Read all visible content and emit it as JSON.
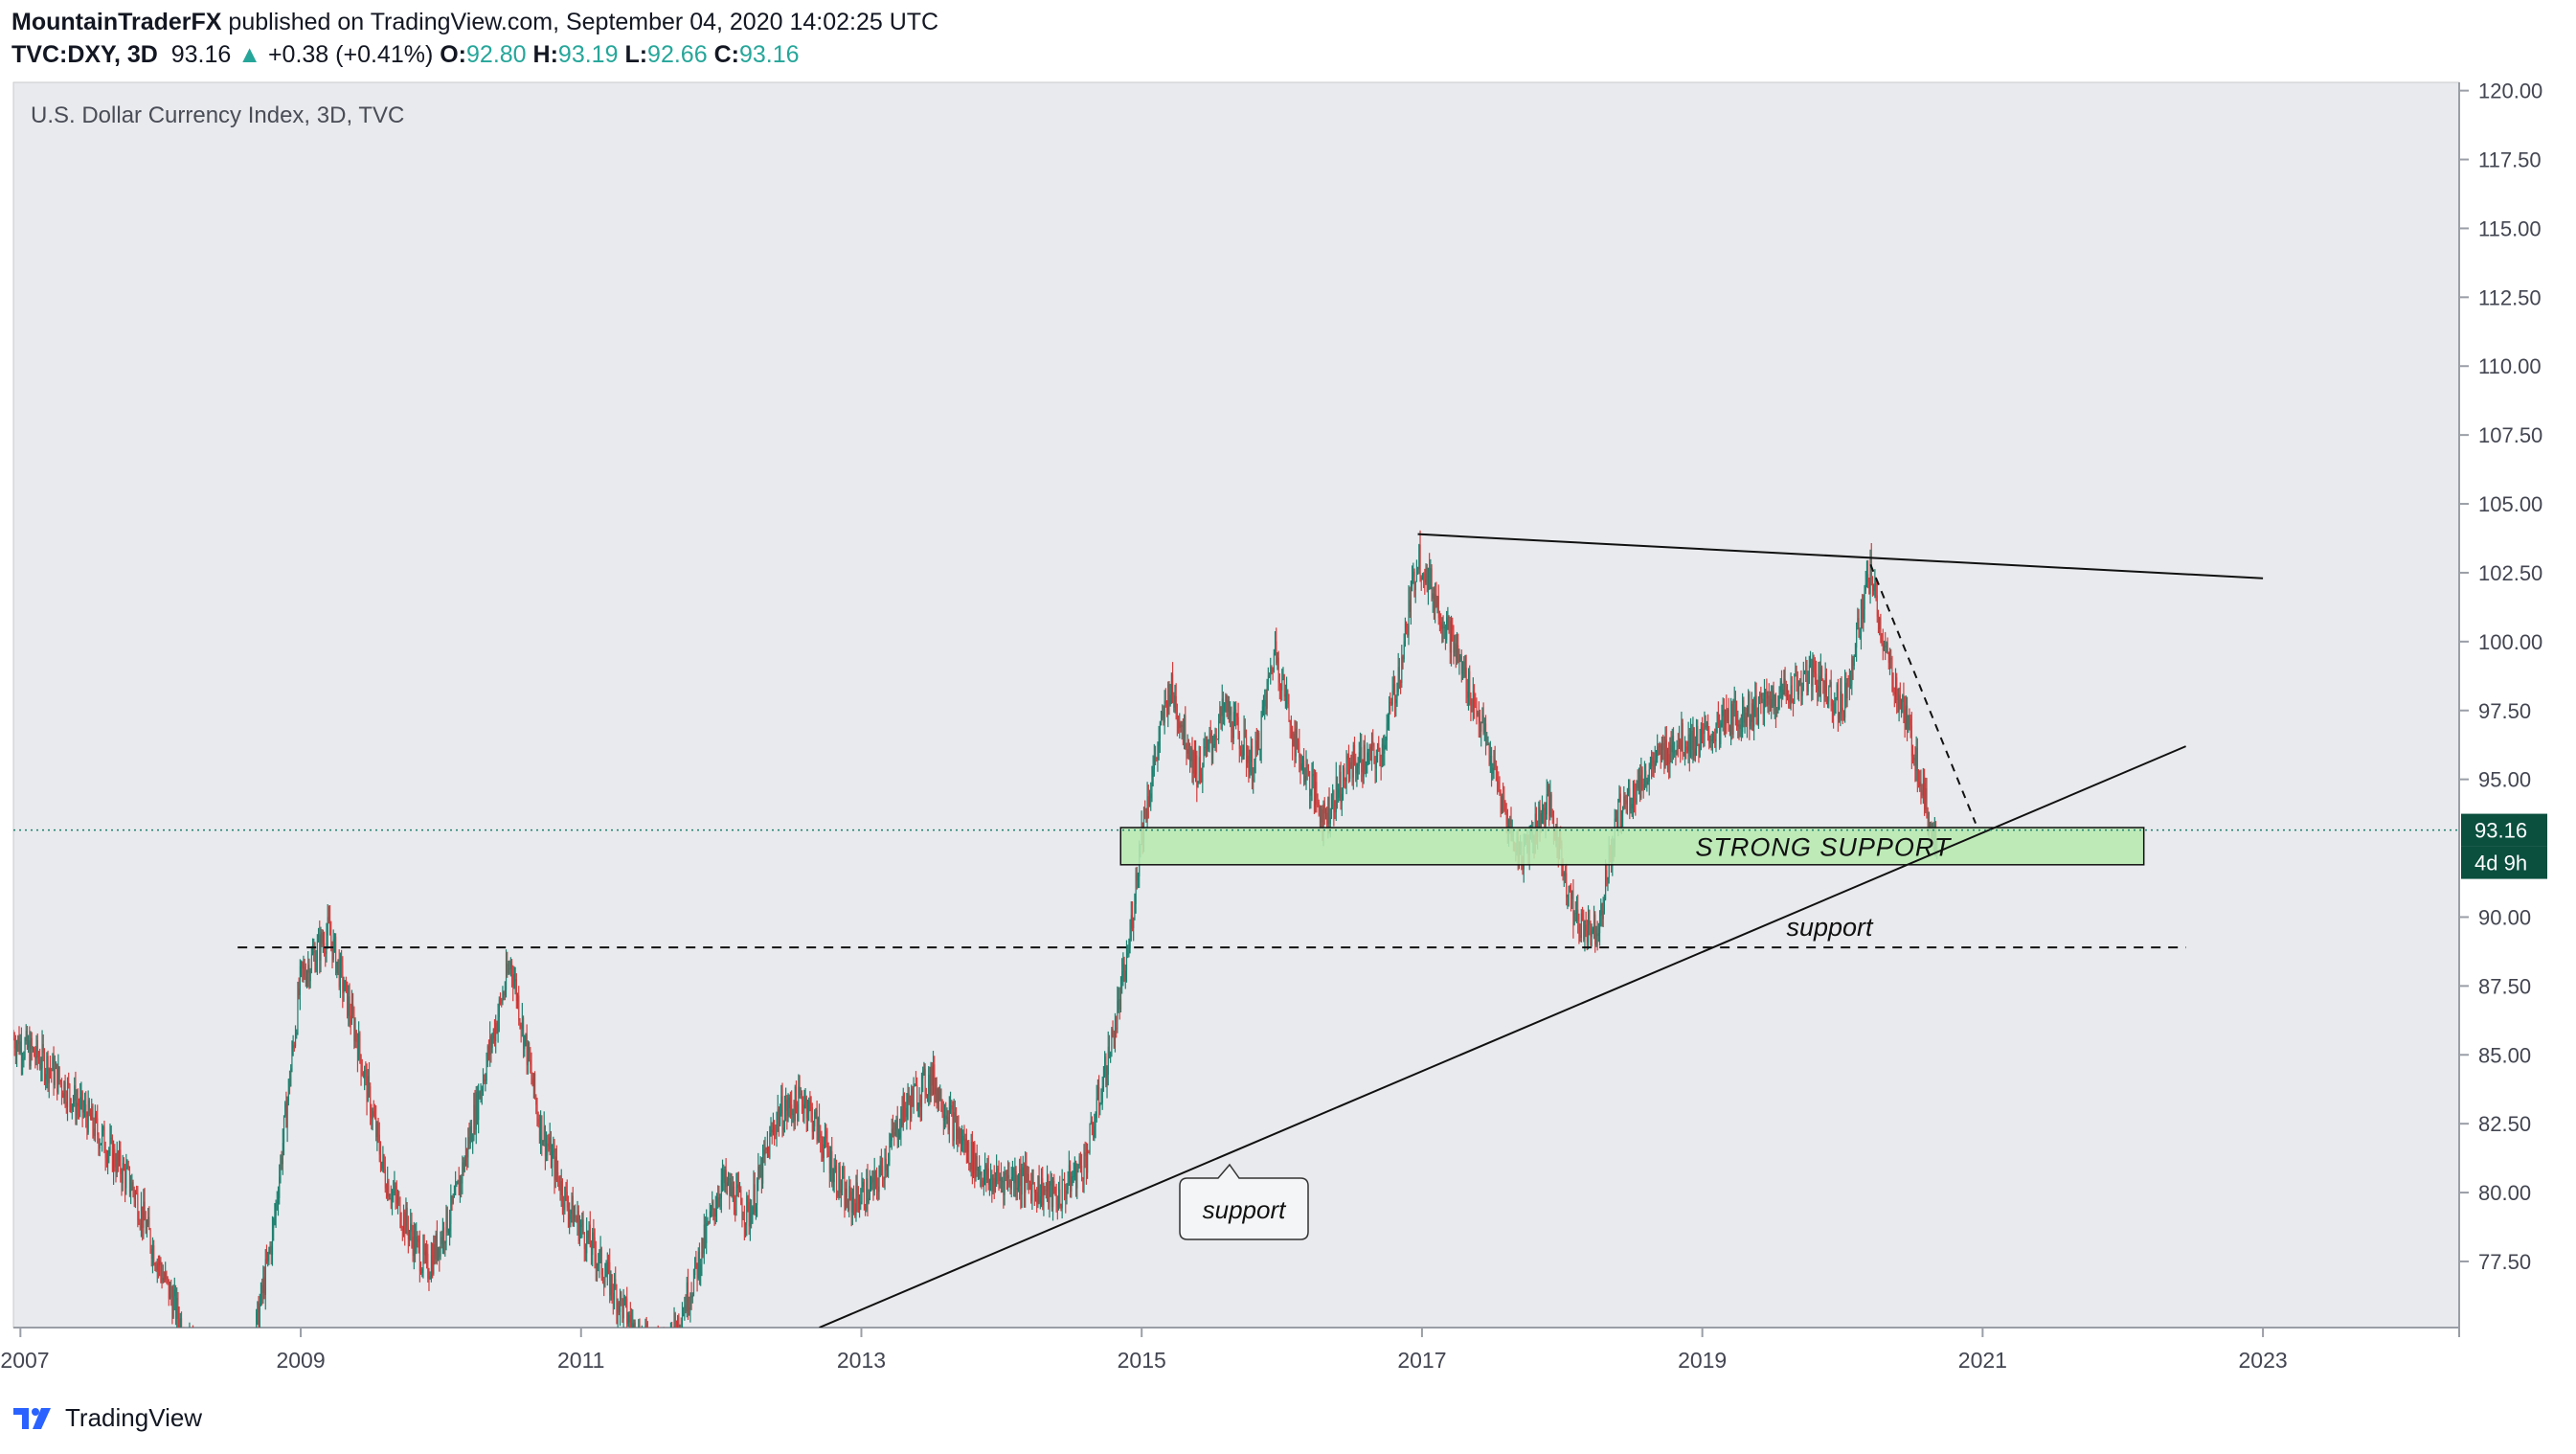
{
  "header": {
    "author": "MountainTraderFX",
    "published_text": "published on TradingView.com, September 04, 2020 14:02:25 UTC",
    "symbol": "TVC:DXY, 3D",
    "last": "93.16",
    "change_arrow": "▲",
    "change": "+0.38 (+0.41%)",
    "o_label": "O:",
    "o_value": "92.80",
    "h_label": "H:",
    "h_value": "93.19",
    "l_label": "L:",
    "l_value": "92.66",
    "c_label": "C:",
    "c_value": "93.16"
  },
  "footer": {
    "brand": "TradingView"
  },
  "chart_data": {
    "type": "candlestick",
    "title": "U.S. Dollar Currency Index, 3D, TVC",
    "x_ticks": [
      "2007",
      "2009",
      "2011",
      "2013",
      "2015",
      "2017",
      "2019",
      "2021",
      "2023"
    ],
    "x_tick_years": [
      2007,
      2009,
      2011,
      2013,
      2015,
      2017,
      2019,
      2021,
      2023
    ],
    "y_ticks": [
      "120.00",
      "117.50",
      "115.00",
      "112.50",
      "110.00",
      "107.50",
      "105.00",
      "102.50",
      "100.00",
      "97.50",
      "95.00",
      "90.00",
      "87.50",
      "85.00",
      "82.50",
      "80.00",
      "77.50"
    ],
    "y_tick_values": [
      120,
      117.5,
      115,
      112.5,
      110,
      107.5,
      105,
      102.5,
      100,
      97.5,
      95,
      90,
      87.5,
      85,
      82.5,
      80,
      77.5
    ],
    "xlim": [
      2006.95,
      2024.4
    ],
    "ylim": [
      75.1,
      120.3
    ],
    "price_path": [
      [
        2006.95,
        85.6
      ],
      [
        2007.2,
        84.6
      ],
      [
        2007.5,
        82.6
      ],
      [
        2007.8,
        80.2
      ],
      [
        2008.0,
        77.2
      ],
      [
        2008.3,
        73.2
      ],
      [
        2008.6,
        72.8
      ],
      [
        2008.8,
        78.5
      ],
      [
        2009.0,
        87.8
      ],
      [
        2009.2,
        89.5
      ],
      [
        2009.4,
        85.6
      ],
      [
        2009.6,
        80.6
      ],
      [
        2009.9,
        77.2
      ],
      [
        2010.1,
        79.6
      ],
      [
        2010.3,
        84.2
      ],
      [
        2010.5,
        88.4
      ],
      [
        2010.7,
        82.6
      ],
      [
        2010.9,
        79.6
      ],
      [
        2011.1,
        77.8
      ],
      [
        2011.4,
        74.8
      ],
      [
        2011.6,
        74.2
      ],
      [
        2011.8,
        76.8
      ],
      [
        2012.0,
        80.4
      ],
      [
        2012.2,
        79.2
      ],
      [
        2012.4,
        82.8
      ],
      [
        2012.6,
        83.4
      ],
      [
        2012.9,
        79.6
      ],
      [
        2013.1,
        80.2
      ],
      [
        2013.3,
        83.0
      ],
      [
        2013.5,
        84.2
      ],
      [
        2013.7,
        82.0
      ],
      [
        2013.9,
        80.4
      ],
      [
        2014.1,
        80.6
      ],
      [
        2014.4,
        79.8
      ],
      [
        2014.6,
        81.2
      ],
      [
        2014.8,
        85.8
      ],
      [
        2014.9,
        88.6
      ],
      [
        2015.0,
        93.2
      ],
      [
        2015.2,
        98.4
      ],
      [
        2015.4,
        95.2
      ],
      [
        2015.6,
        97.6
      ],
      [
        2015.8,
        95.4
      ],
      [
        2015.95,
        99.8
      ],
      [
        2016.1,
        96.2
      ],
      [
        2016.3,
        93.6
      ],
      [
        2016.5,
        95.6
      ],
      [
        2016.7,
        95.8
      ],
      [
        2016.85,
        99.2
      ],
      [
        2016.97,
        103.2
      ],
      [
        2017.2,
        100.2
      ],
      [
        2017.4,
        97.4
      ],
      [
        2017.6,
        93.6
      ],
      [
        2017.7,
        92.2
      ],
      [
        2017.9,
        94.2
      ],
      [
        2018.1,
        89.8
      ],
      [
        2018.25,
        89.6
      ],
      [
        2018.4,
        93.8
      ],
      [
        2018.6,
        95.2
      ],
      [
        2018.8,
        96.4
      ],
      [
        2019.0,
        96.4
      ],
      [
        2019.2,
        97.2
      ],
      [
        2019.4,
        97.6
      ],
      [
        2019.6,
        98.2
      ],
      [
        2019.8,
        98.8
      ],
      [
        2020.0,
        97.6
      ],
      [
        2020.2,
        102.6
      ],
      [
        2020.3,
        99.6
      ],
      [
        2020.45,
        97.2
      ],
      [
        2020.55,
        95.2
      ],
      [
        2020.65,
        92.8
      ],
      [
        2020.68,
        93.16
      ]
    ],
    "last_price": "93.16",
    "last_price_value": 93.16,
    "countdown": "4d 9h",
    "annotations": [
      {
        "type": "zone",
        "label": "STRONG SUPPORT",
        "x": [
          2014.85,
          2022.15
        ],
        "y": [
          91.9,
          93.25
        ],
        "color": "#b7e9b0"
      },
      {
        "type": "hline_dashed",
        "label": "support",
        "x": [
          2008.55,
          2022.45
        ],
        "y": 88.9
      },
      {
        "type": "trendline",
        "x": [
          2012.7,
          2022.45
        ],
        "y": [
          75.1,
          96.2
        ]
      },
      {
        "type": "trendline",
        "x": [
          2016.97,
          2023.0
        ],
        "y": [
          103.9,
          102.3
        ]
      },
      {
        "type": "dashed_line",
        "x": [
          2020.2,
          2020.95
        ],
        "y": [
          102.8,
          93.4
        ]
      },
      {
        "type": "callout",
        "label": "support"
      }
    ]
  }
}
